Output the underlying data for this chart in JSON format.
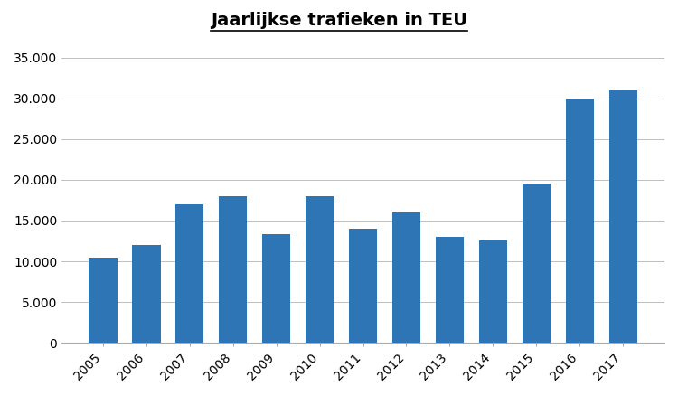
{
  "title": "Jaarlijkse trafieken in TEU",
  "years": [
    2005,
    2006,
    2007,
    2008,
    2009,
    2010,
    2011,
    2012,
    2013,
    2014,
    2015,
    2016,
    2017
  ],
  "values": [
    10500,
    12000,
    17000,
    18000,
    13300,
    18000,
    14000,
    16000,
    13000,
    12500,
    19500,
    30000,
    31000
  ],
  "bar_color": "#2e75b6",
  "background_color": "#ffffff",
  "ylim": [
    0,
    37000
  ],
  "yticks": [
    0,
    5000,
    10000,
    15000,
    20000,
    25000,
    30000,
    35000
  ],
  "grid_color": "#c0c0c0",
  "title_fontsize": 14,
  "tick_fontsize": 10
}
